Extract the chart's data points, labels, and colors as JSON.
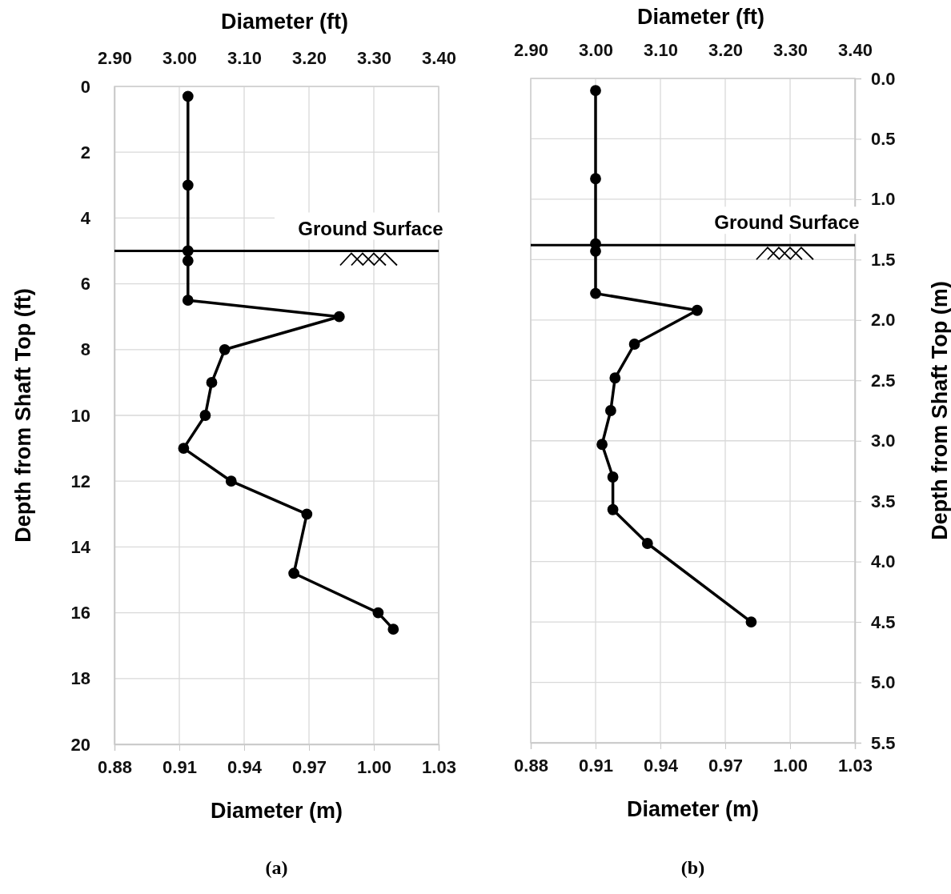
{
  "chart_data": [
    {
      "type": "line",
      "xlabel": "Diameter (m)",
      "x2label": "Diameter (ft)",
      "ylabel": "Depth from Shaft Top (ft)",
      "xlim": [
        0.88,
        1.03
      ],
      "xticks": [
        0.88,
        0.91,
        0.94,
        0.97,
        {
          "value": 1.0,
          "label": "1.00"
        },
        1.03
      ],
      "x2lim": [
        2.9,
        3.4
      ],
      "x2ticks": [
        {
          "value": 2.9,
          "label": "2.90"
        },
        {
          "value": 3.0,
          "label": "3.00"
        },
        {
          "value": 3.1,
          "label": "3.10"
        },
        {
          "value": 3.2,
          "label": "3.20"
        },
        {
          "value": 3.3,
          "label": "3.30"
        },
        {
          "value": 3.4,
          "label": "3.40"
        }
      ],
      "ylim": [
        20,
        0
      ],
      "yticks": [
        0,
        2,
        4,
        6,
        8,
        10,
        12,
        14,
        16,
        18,
        20
      ],
      "grid": true,
      "marker": "circle",
      "line_style": "solid",
      "series": [
        {
          "color": "#000000",
          "x": [
            0.914,
            0.914,
            0.914,
            0.914,
            0.914,
            0.984,
            0.931,
            0.925,
            0.922,
            0.912,
            0.934,
            0.969,
            0.963,
            1.002,
            1.009
          ],
          "values": [
            0.3,
            3.0,
            5.0,
            5.3,
            6.5,
            7.0,
            8.0,
            9.0,
            10.0,
            11.0,
            12.0,
            13.0,
            14.8,
            16.0,
            16.5
          ]
        }
      ],
      "ref_lines": [
        {
          "axis": "y",
          "value": 5.0,
          "label": "Ground Surface",
          "color": "#000000"
        }
      ],
      "annotations": [
        "(a)"
      ]
    },
    {
      "type": "line",
      "xlabel": "Diameter (m)",
      "x2label": "Diameter (ft)",
      "y2label": "Depth from Shaft Top (m)",
      "xlim": [
        0.88,
        1.03
      ],
      "xticks": [
        0.88,
        0.91,
        0.94,
        0.97,
        {
          "value": 1.0,
          "label": "1.00"
        },
        1.03
      ],
      "x2lim": [
        2.9,
        3.4
      ],
      "x2ticks": [
        {
          "value": 2.9,
          "label": "2.90"
        },
        {
          "value": 3.0,
          "label": "3.00"
        },
        {
          "value": 3.1,
          "label": "3.10"
        },
        {
          "value": 3.2,
          "label": "3.20"
        },
        {
          "value": 3.3,
          "label": "3.30"
        },
        {
          "value": 3.4,
          "label": "3.40"
        }
      ],
      "y2lim": [
        5.5,
        0
      ],
      "y2ticks": [
        {
          "value": 0,
          "label": "0.0"
        },
        0.5,
        {
          "value": 1,
          "label": "1.0"
        },
        1.5,
        {
          "value": 2,
          "label": "2.0"
        },
        2.5,
        {
          "value": 3,
          "label": "3.0"
        },
        3.5,
        {
          "value": 4,
          "label": "4.0"
        },
        4.5,
        {
          "value": 5,
          "label": "5.0"
        },
        5.5
      ],
      "grid": true,
      "marker": "circle",
      "line_style": "solid",
      "series": [
        {
          "color": "#000000",
          "axis": "y2",
          "x": [
            0.91,
            0.91,
            0.91,
            0.91,
            0.91,
            0.957,
            0.928,
            0.919,
            0.917,
            0.913,
            0.918,
            0.918,
            0.934,
            0.982
          ],
          "values": [
            0.1,
            0.83,
            1.37,
            1.43,
            1.78,
            1.92,
            2.2,
            2.48,
            2.75,
            3.03,
            3.3,
            3.57,
            3.85,
            4.5
          ]
        }
      ],
      "ref_lines": [
        {
          "axis": "y2",
          "value": 1.38,
          "label": "Ground Surface",
          "color": "#000000"
        }
      ],
      "annotations": [
        "(b)"
      ]
    }
  ]
}
